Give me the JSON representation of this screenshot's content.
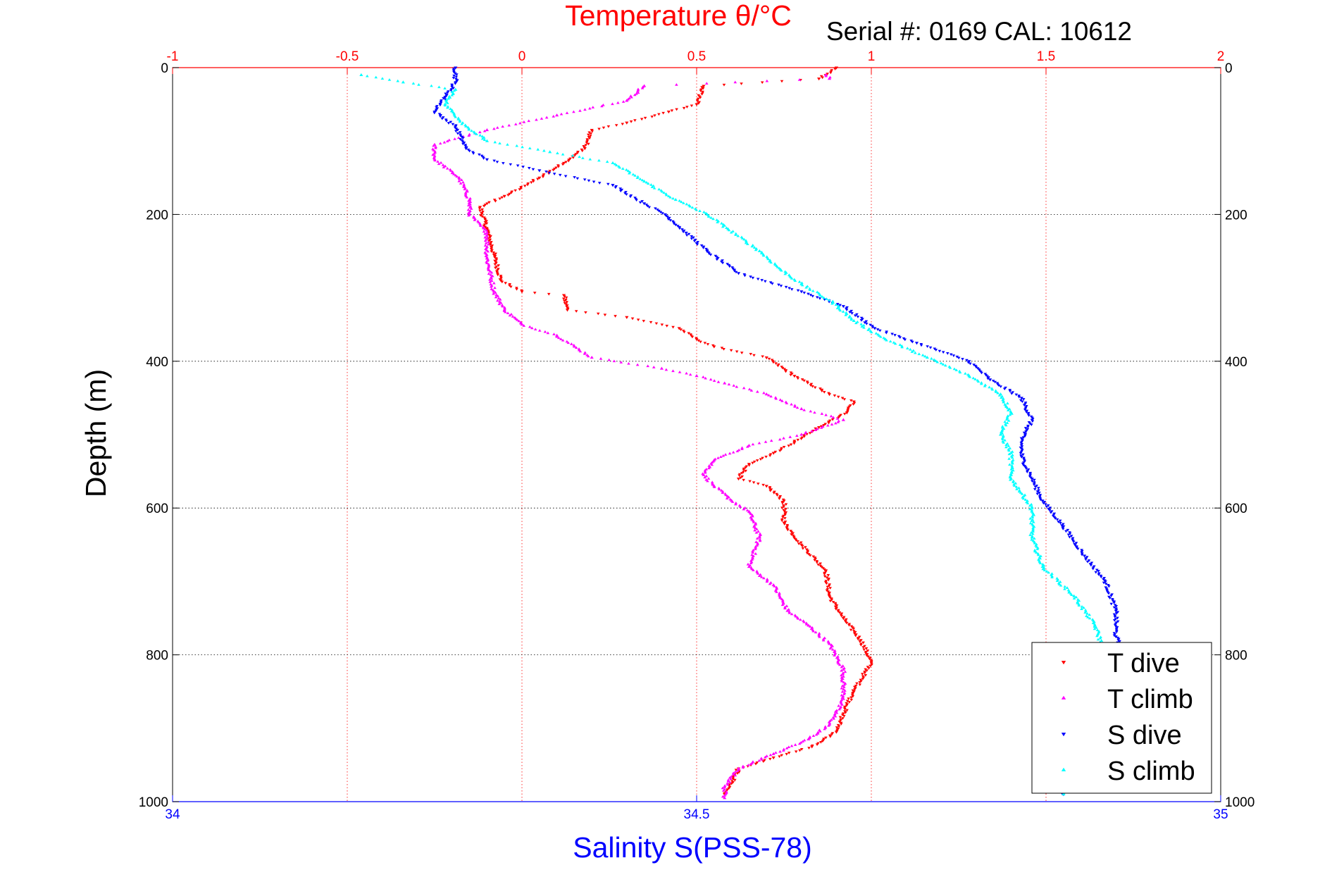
{
  "chart_data": {
    "type": "scatter",
    "title": "Temperature θ/°C",
    "subtitle": "Serial #: 0169 CAL: 10612",
    "ylabel": "Depth (m)",
    "xlabel": "Salinity S(PSS-78)",
    "y_axis": {
      "range": [
        0,
        1000
      ],
      "reversed": true,
      "ticks": [
        0,
        200,
        400,
        600,
        800,
        1000
      ],
      "tick_labels": [
        "0",
        "200",
        "400",
        "600",
        "800",
        "1000"
      ]
    },
    "x_axis_top_temperature": {
      "range": [
        -1,
        2
      ],
      "ticks": [
        -1,
        -0.5,
        0,
        0.5,
        1,
        1.5,
        2
      ],
      "tick_labels": [
        "-1",
        "-0.5",
        "0",
        "0.5",
        "1",
        "1.5",
        "2"
      ],
      "color": "#ff0000"
    },
    "x_axis_bottom_salinity": {
      "range": [
        34,
        35
      ],
      "ticks": [
        34,
        34.5,
        35
      ],
      "tick_labels": [
        "34",
        "34.5",
        "35"
      ],
      "color": "#0000ff"
    },
    "grid": true,
    "legend": {
      "placement": "bottom-right"
    },
    "series": [
      {
        "name": "T dive",
        "axis": "temperature",
        "color": "#ff0000",
        "marker": "triangle-down",
        "points": [
          [
            0.9,
            0
          ],
          [
            0.85,
            15
          ],
          [
            0.52,
            25
          ],
          [
            0.5,
            50
          ],
          [
            0.42,
            60
          ],
          [
            0.3,
            75
          ],
          [
            0.2,
            85
          ],
          [
            0.18,
            110
          ],
          [
            0.12,
            130
          ],
          [
            0.05,
            150
          ],
          [
            -0.05,
            175
          ],
          [
            -0.12,
            190
          ],
          [
            -0.1,
            220
          ],
          [
            -0.08,
            255
          ],
          [
            -0.06,
            290
          ],
          [
            0.0,
            305
          ],
          [
            0.12,
            310
          ],
          [
            0.13,
            330
          ],
          [
            0.3,
            340
          ],
          [
            0.45,
            355
          ],
          [
            0.5,
            370
          ],
          [
            0.55,
            380
          ],
          [
            0.7,
            395
          ],
          [
            0.78,
            420
          ],
          [
            0.88,
            445
          ],
          [
            0.95,
            455
          ],
          [
            0.93,
            470
          ],
          [
            0.85,
            490
          ],
          [
            0.78,
            510
          ],
          [
            0.72,
            525
          ],
          [
            0.65,
            540
          ],
          [
            0.62,
            560
          ],
          [
            0.7,
            570
          ],
          [
            0.75,
            590
          ],
          [
            0.75,
            620
          ],
          [
            0.8,
            650
          ],
          [
            0.87,
            685
          ],
          [
            0.88,
            720
          ],
          [
            0.92,
            750
          ],
          [
            0.97,
            780
          ],
          [
            1.0,
            810
          ],
          [
            0.95,
            850
          ],
          [
            0.92,
            880
          ],
          [
            0.9,
            905
          ],
          [
            0.83,
            925
          ],
          [
            0.72,
            940
          ],
          [
            0.62,
            955
          ],
          [
            0.6,
            975
          ],
          [
            0.58,
            990
          ]
        ]
      },
      {
        "name": "T climb",
        "axis": "temperature",
        "color": "#ff00ff",
        "marker": "triangle-up",
        "points": [
          [
            0.87,
            10
          ],
          [
            0.88,
            15
          ],
          [
            0.35,
            25
          ],
          [
            0.3,
            45
          ],
          [
            0.1,
            65
          ],
          [
            -0.1,
            85
          ],
          [
            -0.25,
            105
          ],
          [
            -0.25,
            125
          ],
          [
            -0.18,
            150
          ],
          [
            -0.15,
            180
          ],
          [
            -0.15,
            200
          ],
          [
            -0.1,
            225
          ],
          [
            -0.1,
            260
          ],
          [
            -0.08,
            305
          ],
          [
            -0.05,
            330
          ],
          [
            0.0,
            350
          ],
          [
            0.1,
            365
          ],
          [
            0.15,
            380
          ],
          [
            0.2,
            395
          ],
          [
            0.4,
            410
          ],
          [
            0.5,
            420
          ],
          [
            0.58,
            430
          ],
          [
            0.7,
            445
          ],
          [
            0.8,
            465
          ],
          [
            0.92,
            480
          ],
          [
            0.8,
            500
          ],
          [
            0.65,
            515
          ],
          [
            0.55,
            535
          ],
          [
            0.52,
            555
          ],
          [
            0.55,
            570
          ],
          [
            0.6,
            590
          ],
          [
            0.65,
            605
          ],
          [
            0.68,
            640
          ],
          [
            0.65,
            680
          ],
          [
            0.72,
            705
          ],
          [
            0.76,
            740
          ],
          [
            0.82,
            760
          ],
          [
            0.88,
            785
          ],
          [
            0.92,
            820
          ],
          [
            0.92,
            860
          ],
          [
            0.88,
            895
          ],
          [
            0.82,
            915
          ],
          [
            0.72,
            935
          ],
          [
            0.62,
            955
          ],
          [
            0.58,
            980
          ],
          [
            0.58,
            995
          ]
        ]
      },
      {
        "name": "S dive",
        "axis": "salinity",
        "color": "#0000ff",
        "marker": "triangle-down",
        "points": [
          [
            34.27,
            0
          ],
          [
            34.27,
            20
          ],
          [
            34.26,
            40
          ],
          [
            34.25,
            60
          ],
          [
            34.27,
            80
          ],
          [
            34.28,
            110
          ],
          [
            34.3,
            125
          ],
          [
            34.35,
            140
          ],
          [
            34.42,
            160
          ],
          [
            34.45,
            185
          ],
          [
            34.47,
            200
          ],
          [
            34.49,
            225
          ],
          [
            34.51,
            250
          ],
          [
            34.54,
            280
          ],
          [
            34.6,
            305
          ],
          [
            34.64,
            325
          ],
          [
            34.67,
            355
          ],
          [
            34.71,
            375
          ],
          [
            34.76,
            400
          ],
          [
            34.78,
            425
          ],
          [
            34.81,
            450
          ],
          [
            34.82,
            480
          ],
          [
            34.81,
            505
          ],
          [
            34.81,
            530
          ],
          [
            34.82,
            560
          ],
          [
            34.83,
            590
          ],
          [
            34.85,
            625
          ],
          [
            34.87,
            665
          ],
          [
            34.89,
            700
          ],
          [
            34.9,
            740
          ],
          [
            34.9,
            775
          ],
          [
            34.91,
            810
          ],
          [
            34.91,
            850
          ],
          [
            34.91,
            890
          ],
          [
            34.88,
            925
          ],
          [
            34.86,
            950
          ],
          [
            34.85,
            975
          ],
          [
            34.85,
            990
          ]
        ]
      },
      {
        "name": "S climb",
        "axis": "salinity",
        "color": "#00ffff",
        "marker": "triangle-up",
        "points": [
          [
            34.18,
            10
          ],
          [
            34.22,
            20
          ],
          [
            34.27,
            30
          ],
          [
            34.26,
            50
          ],
          [
            34.28,
            80
          ],
          [
            34.3,
            100
          ],
          [
            34.36,
            115
          ],
          [
            34.42,
            130
          ],
          [
            34.45,
            155
          ],
          [
            34.48,
            180
          ],
          [
            34.51,
            200
          ],
          [
            34.53,
            220
          ],
          [
            34.56,
            250
          ],
          [
            34.58,
            275
          ],
          [
            34.6,
            295
          ],
          [
            34.63,
            320
          ],
          [
            34.65,
            345
          ],
          [
            34.68,
            370
          ],
          [
            34.72,
            395
          ],
          [
            34.76,
            420
          ],
          [
            34.79,
            445
          ],
          [
            34.8,
            470
          ],
          [
            34.79,
            500
          ],
          [
            34.8,
            525
          ],
          [
            34.8,
            560
          ],
          [
            34.82,
            600
          ],
          [
            34.82,
            640
          ],
          [
            34.83,
            680
          ],
          [
            34.86,
            720
          ],
          [
            34.88,
            760
          ],
          [
            34.89,
            800
          ],
          [
            34.89,
            840
          ],
          [
            34.88,
            880
          ],
          [
            34.87,
            910
          ],
          [
            34.86,
            940
          ],
          [
            34.85,
            970
          ],
          [
            34.85,
            990
          ]
        ]
      }
    ]
  }
}
